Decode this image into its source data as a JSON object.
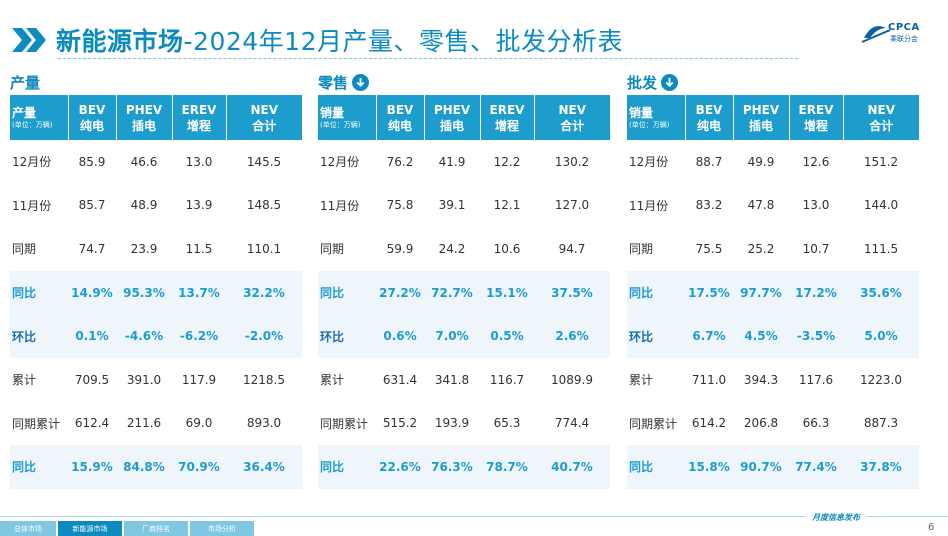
{
  "header": {
    "title_bold": "新能源市场",
    "title_rest": "-2024年12月产量、零售、批发分析表",
    "logo_text": "CPCA",
    "logo_sub": "乘联分会"
  },
  "columns": {
    "first_label": "产量",
    "unit": "(单位：万辆)",
    "bev_top": "BEV",
    "bev_bottom": "纯电",
    "phev_top": "PHEV",
    "phev_bottom": "插电",
    "erev_top": "EREV",
    "erev_bottom": "增程",
    "nev_top": "NEV",
    "nev_bottom": "合计"
  },
  "sections": [
    {
      "title": "产量",
      "first_col": "产量",
      "rows": [
        {
          "label": "12月份",
          "bev": "85.9",
          "phev": "46.6",
          "erev": "13.0",
          "nev": "145.5"
        },
        {
          "label": "11月份",
          "bev": "85.7",
          "phev": "48.9",
          "erev": "13.9",
          "nev": "148.5"
        },
        {
          "label": "同期",
          "bev": "74.7",
          "phev": "23.9",
          "erev": "11.5",
          "nev": "110.1"
        },
        {
          "label": "同比",
          "bev": "14.9%",
          "phev": "95.3%",
          "erev": "13.7%",
          "nev": "32.2%"
        },
        {
          "label": "环比",
          "bev": "0.1%",
          "phev": "-4.6%",
          "erev": "-6.2%",
          "nev": "-2.0%"
        },
        {
          "label": "累计",
          "bev": "709.5",
          "phev": "391.0",
          "erev": "117.9",
          "nev": "1218.5"
        },
        {
          "label": "同期累计",
          "bev": "612.4",
          "phev": "211.6",
          "erev": "69.0",
          "nev": "893.0"
        },
        {
          "label": "同比",
          "bev": "15.9%",
          "phev": "84.8%",
          "erev": "70.9%",
          "nev": "36.4%"
        }
      ]
    },
    {
      "title": "零售",
      "first_col": "销量",
      "rows": [
        {
          "label": "12月份",
          "bev": "76.2",
          "phev": "41.9",
          "erev": "12.2",
          "nev": "130.2"
        },
        {
          "label": "11月份",
          "bev": "75.8",
          "phev": "39.1",
          "erev": "12.1",
          "nev": "127.0"
        },
        {
          "label": "同期",
          "bev": "59.9",
          "phev": "24.2",
          "erev": "10.6",
          "nev": "94.7"
        },
        {
          "label": "同比",
          "bev": "27.2%",
          "phev": "72.7%",
          "erev": "15.1%",
          "nev": "37.5%"
        },
        {
          "label": "环比",
          "bev": "0.6%",
          "phev": "7.0%",
          "erev": "0.5%",
          "nev": "2.6%"
        },
        {
          "label": "累计",
          "bev": "631.4",
          "phev": "341.8",
          "erev": "116.7",
          "nev": "1089.9"
        },
        {
          "label": "同期累计",
          "bev": "515.2",
          "phev": "193.9",
          "erev": "65.3",
          "nev": "774.4"
        },
        {
          "label": "同比",
          "bev": "22.6%",
          "phev": "76.3%",
          "erev": "78.7%",
          "nev": "40.7%"
        }
      ]
    },
    {
      "title": "批发",
      "first_col": "销量",
      "rows": [
        {
          "label": "12月份",
          "bev": "88.7",
          "phev": "49.9",
          "erev": "12.6",
          "nev": "151.2"
        },
        {
          "label": "11月份",
          "bev": "83.2",
          "phev": "47.8",
          "erev": "13.0",
          "nev": "144.0"
        },
        {
          "label": "同期",
          "bev": "75.5",
          "phev": "25.2",
          "erev": "10.7",
          "nev": "111.5"
        },
        {
          "label": "同比",
          "bev": "17.5%",
          "phev": "97.7%",
          "erev": "17.2%",
          "nev": "35.6%"
        },
        {
          "label": "环比",
          "bev": "6.7%",
          "phev": "4.5%",
          "erev": "-3.5%",
          "nev": "5.0%"
        },
        {
          "label": "累计",
          "bev": "711.0",
          "phev": "394.3",
          "erev": "117.6",
          "nev": "1223.0"
        },
        {
          "label": "同期累计",
          "bev": "614.2",
          "phev": "206.8",
          "erev": "66.3",
          "nev": "887.3"
        },
        {
          "label": "同比",
          "bev": "15.8%",
          "phev": "90.7%",
          "erev": "77.4%",
          "nev": "37.8%"
        }
      ]
    }
  ],
  "footer": {
    "tabs": [
      "总体市场",
      "新能源市场",
      "厂商排名",
      "市场分析"
    ],
    "active_tab": "新能源市场",
    "right_text": "月度信息发布",
    "page": "6"
  },
  "colors": {
    "accent": "#0b8bbf",
    "header_bg": "#1d9cce",
    "highlight_bg": "#eef5fb"
  }
}
